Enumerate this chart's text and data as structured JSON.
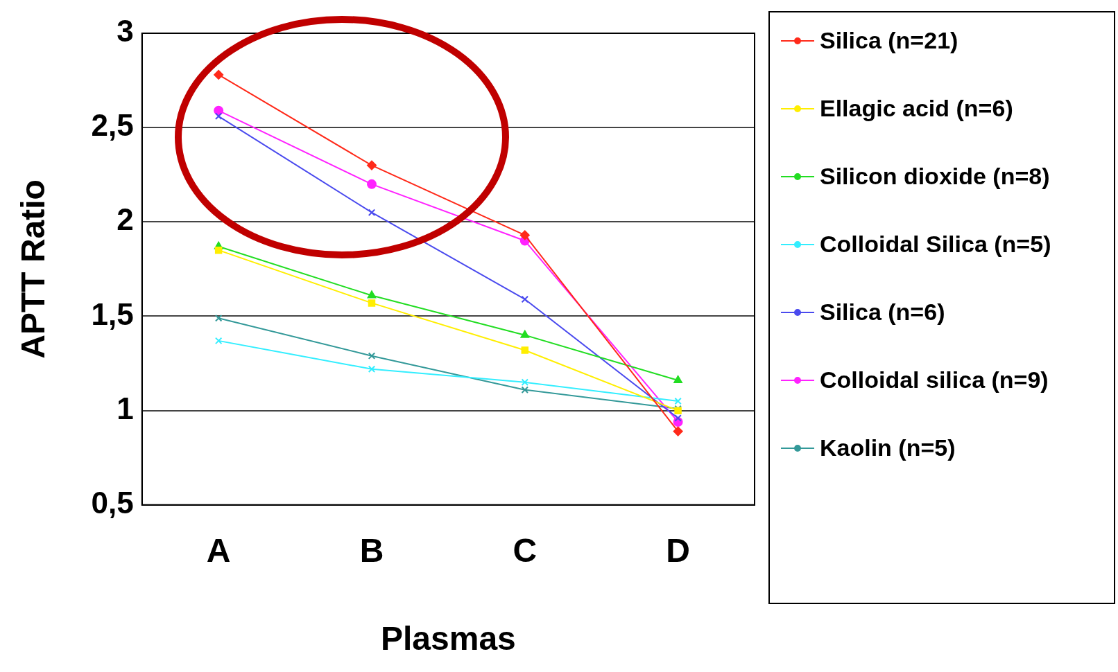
{
  "chart_data": {
    "type": "line",
    "xlabel": "Plasmas",
    "ylabel": "APTT Ratio",
    "categories": [
      "A",
      "B",
      "C",
      "D"
    ],
    "ylim": [
      0.5,
      3
    ],
    "yticks": [
      {
        "value": 0.5,
        "label": "0,5"
      },
      {
        "value": 1,
        "label": "1"
      },
      {
        "value": 1.5,
        "label": "1,5"
      },
      {
        "value": 2,
        "label": "2"
      },
      {
        "value": 2.5,
        "label": "2,5"
      },
      {
        "value": 3,
        "label": "3"
      }
    ],
    "grid": "y",
    "legend": "right",
    "line_style": "solid",
    "series": [
      {
        "name": "Silica (n=21)",
        "color": "#ff2a1a",
        "marker": "diamond",
        "values": [
          2.78,
          2.3,
          1.93,
          0.89
        ]
      },
      {
        "name": "Ellagic acid (n=6)",
        "color": "#ffee00",
        "marker": "square",
        "values": [
          1.85,
          1.57,
          1.32,
          1.0
        ]
      },
      {
        "name": "Silicon dioxide (n=8)",
        "color": "#22dd22",
        "marker": "triangle",
        "values": [
          1.87,
          1.61,
          1.4,
          1.16
        ]
      },
      {
        "name": "Colloidal Silica (n=5)",
        "color": "#33eeff",
        "marker": "cross",
        "values": [
          1.37,
          1.22,
          1.15,
          1.05
        ]
      },
      {
        "name": "Silica (n=6)",
        "color": "#4a4aee",
        "marker": "cross",
        "values": [
          2.56,
          2.05,
          1.59,
          0.96
        ]
      },
      {
        "name": "Colloidal silica (n=9)",
        "color": "#ff22ff",
        "marker": "circle",
        "values": [
          2.59,
          2.2,
          1.9,
          0.94
        ]
      },
      {
        "name": "Kaolin (n=5)",
        "color": "#339999",
        "marker": "cross",
        "values": [
          1.49,
          1.29,
          1.11,
          1.01
        ]
      }
    ]
  }
}
